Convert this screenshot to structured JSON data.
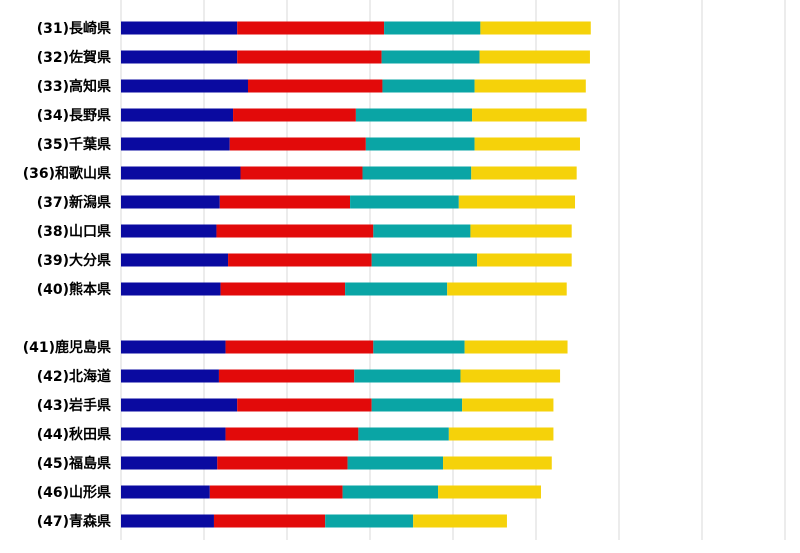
{
  "chart_data": {
    "type": "bar",
    "orientation": "horizontal",
    "stacked": true,
    "grid": true,
    "legend": "none",
    "categories": [
      "(31)長崎県",
      "(32)佐賀県",
      "(33)高知県",
      "(34)長野県",
      "(35)千葉県",
      "(36)和歌山県",
      "(37)新潟県",
      "(38)山口県",
      "(39)大分県",
      "(40)熊本県",
      "(41)鹿児島県",
      "(42)北海道",
      "(43)岩手県",
      "(44)秋田県",
      "(45)福島県",
      "(46)山形県",
      "(47)青森県"
    ],
    "group_break_after": 9,
    "xlim": [
      0,
      8.2
    ],
    "series": [
      {
        "color": "#0a0aa0",
        "values": [
          1.4,
          1.4,
          1.53,
          1.35,
          1.31,
          1.44,
          1.19,
          1.15,
          1.29,
          1.2,
          1.26,
          1.18,
          1.4,
          1.26,
          1.16,
          1.07,
          1.12
        ]
      },
      {
        "color": "#e20a0a",
        "values": [
          1.77,
          1.74,
          1.62,
          1.48,
          1.64,
          1.47,
          1.57,
          1.89,
          1.73,
          1.5,
          1.78,
          1.63,
          1.62,
          1.6,
          1.57,
          1.6,
          1.34
        ]
      },
      {
        "color": "#0aa5a5",
        "values": [
          1.16,
          1.18,
          1.11,
          1.4,
          1.31,
          1.31,
          1.31,
          1.17,
          1.27,
          1.23,
          1.1,
          1.28,
          1.09,
          1.09,
          1.15,
          1.15,
          1.06
        ]
      },
      {
        "color": "#f5d20a",
        "values": [
          1.33,
          1.33,
          1.34,
          1.38,
          1.27,
          1.27,
          1.4,
          1.22,
          1.14,
          1.44,
          1.24,
          1.2,
          1.1,
          1.26,
          1.31,
          1.24,
          1.13
        ]
      }
    ]
  }
}
